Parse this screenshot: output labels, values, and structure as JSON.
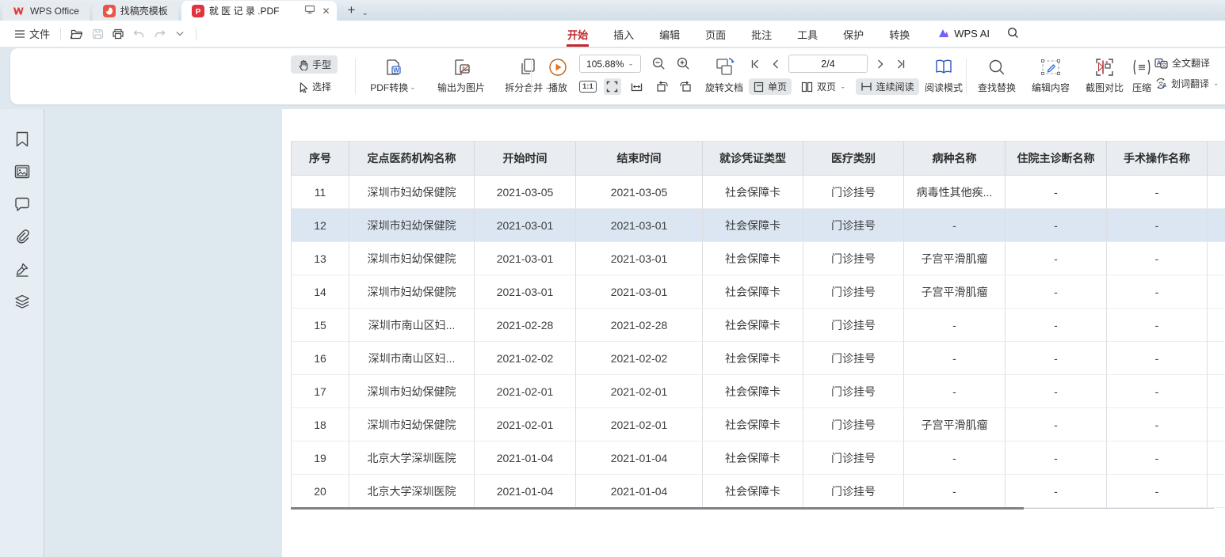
{
  "titlebar": {
    "tabs": [
      {
        "label": "WPS Office",
        "icon": "wps-logo",
        "active": false
      },
      {
        "label": "找稿壳模板",
        "icon": "docer-logo",
        "active": false
      },
      {
        "label": "就 医 记 录 .PDF",
        "icon": "pdf-logo",
        "active": true
      }
    ],
    "new_tab_label": "+"
  },
  "menubar": {
    "file_label": "文件",
    "ribbon_tabs": [
      {
        "label": "开始",
        "active": true
      },
      {
        "label": "插入",
        "active": false
      },
      {
        "label": "编辑",
        "active": false
      },
      {
        "label": "页面",
        "active": false
      },
      {
        "label": "批注",
        "active": false
      },
      {
        "label": "工具",
        "active": false
      },
      {
        "label": "保护",
        "active": false
      },
      {
        "label": "转换",
        "active": false
      }
    ],
    "wps_ai_label": "WPS AI"
  },
  "toolbar": {
    "hand_label": "手型",
    "select_label": "选择",
    "pdf_convert_label": "PDF转换",
    "export_image_label": "输出为图片",
    "split_merge_label": "拆分合并",
    "play_label": "播放",
    "zoom_value": "105.88%",
    "one_to_one_label": "1:1",
    "rotate_doc_label": "旋转文档",
    "page_indicator": "2/4",
    "single_page_label": "单页",
    "double_page_label": "双页",
    "continuous_label": "连续阅读",
    "read_mode_label": "阅读模式",
    "find_replace_label": "查找替换",
    "edit_content_label": "编辑内容",
    "screenshot_compare_label": "截图对比",
    "compress_label": "压缩",
    "full_translate_label": "全文翻译",
    "word_translate_label": "划词翻译"
  },
  "sidebar": {
    "icons": [
      "bookmark",
      "thumbnail",
      "comment",
      "attachment",
      "signature",
      "layers"
    ]
  },
  "document_table": {
    "headers": [
      "序号",
      "定点医药机构名称",
      "开始时间",
      "结束时间",
      "就诊凭证类型",
      "医疗类别",
      "病种名称",
      "住院主诊断名称",
      "手术操作名称"
    ],
    "rows": [
      {
        "highlighted": false,
        "cells": [
          "11",
          "深圳市妇幼保健院",
          "2021-03-05",
          "2021-03-05",
          "社会保障卡",
          "门诊挂号",
          "病毒性其他疾...",
          "-",
          "-"
        ]
      },
      {
        "highlighted": true,
        "cells": [
          "12",
          "深圳市妇幼保健院",
          "2021-03-01",
          "2021-03-01",
          "社会保障卡",
          "门诊挂号",
          "-",
          "-",
          "-"
        ]
      },
      {
        "highlighted": false,
        "cells": [
          "13",
          "深圳市妇幼保健院",
          "2021-03-01",
          "2021-03-01",
          "社会保障卡",
          "门诊挂号",
          "子宫平滑肌瘤",
          "-",
          "-"
        ]
      },
      {
        "highlighted": false,
        "cells": [
          "14",
          "深圳市妇幼保健院",
          "2021-03-01",
          "2021-03-01",
          "社会保障卡",
          "门诊挂号",
          "子宫平滑肌瘤",
          "-",
          "-"
        ]
      },
      {
        "highlighted": false,
        "cells": [
          "15",
          "深圳市南山区妇...",
          "2021-02-28",
          "2021-02-28",
          "社会保障卡",
          "门诊挂号",
          "-",
          "-",
          "-"
        ]
      },
      {
        "highlighted": false,
        "cells": [
          "16",
          "深圳市南山区妇...",
          "2021-02-02",
          "2021-02-02",
          "社会保障卡",
          "门诊挂号",
          "-",
          "-",
          "-"
        ]
      },
      {
        "highlighted": false,
        "cells": [
          "17",
          "深圳市妇幼保健院",
          "2021-02-01",
          "2021-02-01",
          "社会保障卡",
          "门诊挂号",
          "-",
          "-",
          "-"
        ]
      },
      {
        "highlighted": false,
        "cells": [
          "18",
          "深圳市妇幼保健院",
          "2021-02-01",
          "2021-02-01",
          "社会保障卡",
          "门诊挂号",
          "子宫平滑肌瘤",
          "-",
          "-"
        ]
      },
      {
        "highlighted": false,
        "cells": [
          "19",
          "北京大学深圳医院",
          "2021-01-04",
          "2021-01-04",
          "社会保障卡",
          "门诊挂号",
          "-",
          "-",
          "-"
        ]
      },
      {
        "highlighted": false,
        "cells": [
          "20",
          "北京大学深圳医院",
          "2021-01-04",
          "2021-01-04",
          "社会保障卡",
          "门诊挂号",
          "-",
          "-",
          "-"
        ]
      }
    ]
  },
  "colors": {
    "accent_red": "#c3272e",
    "highlight_row": "#dbe6f2",
    "header_row": "#e9edf2"
  }
}
